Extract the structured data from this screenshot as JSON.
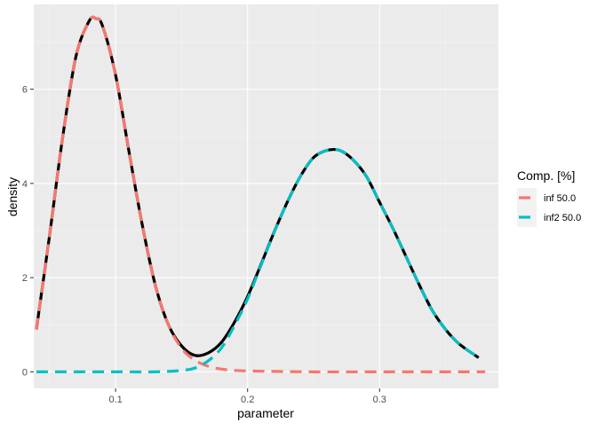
{
  "chart_data": {
    "type": "line",
    "xlabel": "parameter",
    "ylabel": "density",
    "xlim": [
      0.038,
      0.39
    ],
    "ylim": [
      -0.35,
      7.8
    ],
    "x_ticks": [
      0.1,
      0.2,
      0.3
    ],
    "y_ticks": [
      0,
      2,
      4,
      6
    ],
    "grid": true,
    "legend": {
      "title": "Comp. [%]",
      "position": "right"
    },
    "series": [
      {
        "name": "inf 50.0",
        "color": "#F8766D",
        "style": "dashed",
        "x": [
          0.04,
          0.05,
          0.06,
          0.07,
          0.08,
          0.085,
          0.09,
          0.1,
          0.11,
          0.12,
          0.13,
          0.14,
          0.15,
          0.16,
          0.17,
          0.18,
          0.19,
          0.2,
          0.22,
          0.25,
          0.3,
          0.34,
          0.38
        ],
        "values": [
          0.9,
          2.9,
          5.0,
          6.7,
          7.45,
          7.5,
          7.35,
          6.3,
          4.7,
          3.15,
          1.85,
          1.0,
          0.5,
          0.25,
          0.12,
          0.06,
          0.03,
          0.02,
          0.01,
          0.0,
          0.0,
          0.0,
          0.0
        ]
      },
      {
        "name": "inf2 50.0",
        "color": "#00BFC4",
        "style": "dashed",
        "x": [
          0.04,
          0.1,
          0.13,
          0.15,
          0.16,
          0.17,
          0.18,
          0.19,
          0.2,
          0.21,
          0.22,
          0.23,
          0.24,
          0.25,
          0.26,
          0.27,
          0.28,
          0.29,
          0.3,
          0.31,
          0.32,
          0.33,
          0.34,
          0.35,
          0.36,
          0.375
        ],
        "values": [
          0.0,
          0.0,
          0.0,
          0.03,
          0.08,
          0.23,
          0.5,
          0.98,
          1.55,
          2.25,
          2.95,
          3.6,
          4.15,
          4.55,
          4.7,
          4.7,
          4.5,
          4.15,
          3.6,
          3.05,
          2.45,
          1.85,
          1.3,
          0.9,
          0.6,
          0.3
        ]
      },
      {
        "name": "",
        "color": "#000000",
        "style": "solid",
        "x": [
          0.04,
          0.05,
          0.06,
          0.07,
          0.08,
          0.085,
          0.09,
          0.1,
          0.11,
          0.12,
          0.13,
          0.14,
          0.15,
          0.16,
          0.17,
          0.18,
          0.19,
          0.2,
          0.21,
          0.22,
          0.23,
          0.24,
          0.25,
          0.26,
          0.27,
          0.28,
          0.29,
          0.3,
          0.31,
          0.32,
          0.33,
          0.34,
          0.35,
          0.36,
          0.375
        ],
        "values": [
          0.9,
          2.9,
          5.0,
          6.7,
          7.45,
          7.5,
          7.35,
          6.3,
          4.7,
          3.15,
          1.85,
          1.0,
          0.55,
          0.35,
          0.4,
          0.62,
          1.05,
          1.6,
          2.27,
          2.96,
          3.6,
          4.15,
          4.55,
          4.7,
          4.7,
          4.5,
          4.15,
          3.6,
          3.05,
          2.45,
          1.85,
          1.3,
          0.9,
          0.6,
          0.3
        ]
      }
    ]
  }
}
